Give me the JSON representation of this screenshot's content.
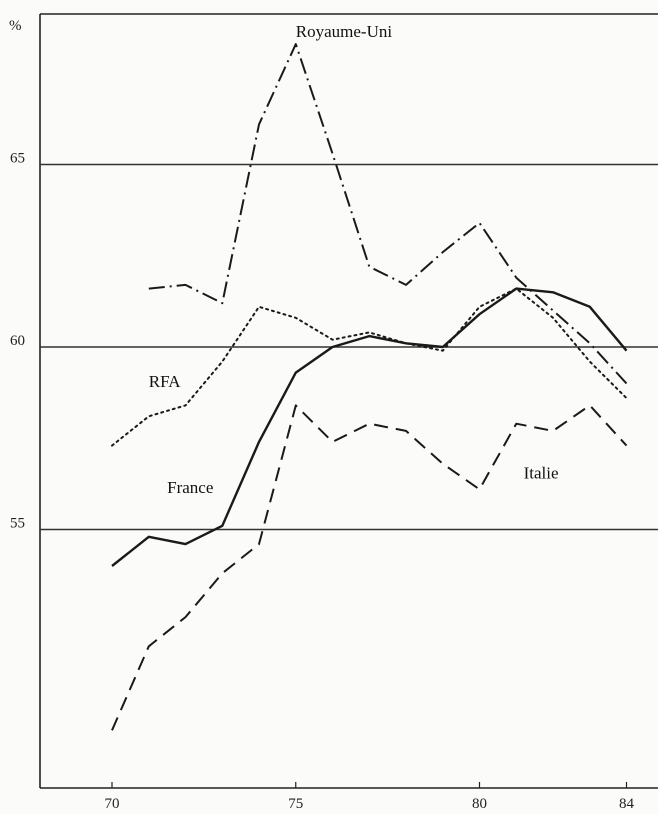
{
  "chart_data": {
    "type": "line",
    "y_unit": "%",
    "xlim": [
      70,
      84
    ],
    "ylim": [
      49,
      69
    ],
    "x_ticks": [
      "70",
      "75",
      "80",
      "84"
    ],
    "y_ticks": [
      "55",
      "60",
      "65"
    ],
    "grid": "horizontal lines at 55, 60, 65",
    "series": [
      {
        "name": "Royaume-Uni",
        "style": "dash-dot",
        "x": [
          71,
          72,
          73,
          74,
          75,
          76,
          77,
          78,
          79,
          80,
          81,
          82,
          83,
          84
        ],
        "values": [
          61.6,
          61.7,
          61.2,
          66.1,
          68.3,
          65.3,
          62.2,
          61.7,
          62.6,
          63.4,
          61.9,
          61.0,
          60.1,
          59.0
        ]
      },
      {
        "name": "RFA",
        "style": "dotted",
        "x": [
          70,
          71,
          72,
          73,
          74,
          75,
          76,
          77,
          78,
          79,
          80,
          81,
          82,
          83,
          84
        ],
        "values": [
          57.3,
          58.1,
          58.4,
          59.6,
          61.1,
          60.8,
          60.2,
          60.4,
          60.1,
          59.9,
          61.1,
          61.6,
          60.8,
          59.6,
          58.6
        ]
      },
      {
        "name": "France",
        "style": "solid",
        "x": [
          70,
          71,
          72,
          73,
          74,
          75,
          76,
          77,
          78,
          79,
          80,
          81,
          82,
          83,
          84
        ],
        "values": [
          54.0,
          54.8,
          54.6,
          55.1,
          57.4,
          59.3,
          60.0,
          60.3,
          60.1,
          60.0,
          60.9,
          61.6,
          61.5,
          61.1,
          59.9
        ]
      },
      {
        "name": "Italie",
        "style": "dashed",
        "x": [
          70,
          71,
          72,
          73,
          74,
          75,
          76,
          77,
          78,
          79,
          80,
          81,
          82,
          83,
          84
        ],
        "values": [
          49.5,
          51.8,
          52.6,
          53.8,
          54.6,
          58.4,
          57.4,
          57.9,
          57.7,
          56.8,
          56.1,
          57.9,
          57.7,
          58.4,
          57.3
        ]
      }
    ],
    "labels": {
      "Royaume-Uni": {
        "x": 75,
        "y": 68.5
      },
      "RFA": {
        "x": 71,
        "y": 58.9
      },
      "France": {
        "x": 71.5,
        "y": 56.0
      },
      "Italie": {
        "x": 81.2,
        "y": 56.4
      }
    }
  }
}
